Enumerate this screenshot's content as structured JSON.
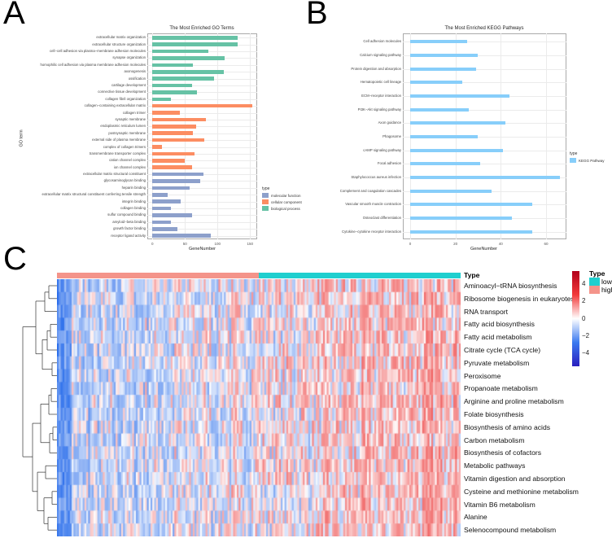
{
  "panels": {
    "a": "A",
    "b": "B",
    "c": "C"
  },
  "chart_data": [
    {
      "type": "bar",
      "orientation": "horizontal",
      "title": "The Most Enriched GO Terms",
      "xlabel": "GeneNumber",
      "ylabel": "GO term",
      "xlim": [
        0,
        160
      ],
      "xticks": [
        "0",
        "50",
        "100",
        "150"
      ],
      "xtick_values": [
        0,
        50,
        100,
        150
      ],
      "legend": {
        "title": "type",
        "position": "right",
        "entries": [
          {
            "label": "molecular function",
            "color": "#8DA0CB"
          },
          {
            "label": "cellular component",
            "color": "#FC8D62"
          },
          {
            "label": "biological process",
            "color": "#66C2A5"
          }
        ]
      },
      "categories": [
        "extracellular matrix organization",
        "extracellular structure organization",
        "cell−cell adhesion via plasma−membrane adhesion molecules",
        "synapse organization",
        "homophilic cell adhesion via plasma membrane adhesion molecules",
        "axonogenesis",
        "ossification",
        "cartilage development",
        "connective tissue development",
        "collagen fibril organization",
        "collagen−containing extracellular matrix",
        "collagen trimer",
        "synaptic membrane",
        "endoplasmic reticulum lumen",
        "postsynaptic membrane",
        "external side of plasma membrane",
        "complex of collagen trimers",
        "transmembrane transporter complex",
        "cation channel complex",
        "ion channel complex",
        "extracellular matrix structural constituent",
        "glycosaminoglycan binding",
        "heparin binding",
        "extracellular matrix structural constituent conferring tensile strength",
        "integrin binding",
        "collagen binding",
        "sulfur compound binding",
        "amyloid−beta binding",
        "growth factor binding",
        "receptor ligand activity"
      ],
      "values": [
        131,
        131,
        86,
        111,
        62,
        110,
        95,
        61,
        69,
        29,
        154,
        42,
        82,
        67,
        62,
        80,
        15,
        65,
        50,
        61,
        78,
        73,
        57,
        23,
        44,
        28,
        61,
        29,
        39,
        90
      ],
      "groups": [
        2,
        2,
        2,
        2,
        2,
        2,
        2,
        2,
        2,
        2,
        1,
        1,
        1,
        1,
        1,
        1,
        1,
        1,
        1,
        1,
        0,
        0,
        0,
        0,
        0,
        0,
        0,
        0,
        0,
        0
      ]
    },
    {
      "type": "bar",
      "orientation": "horizontal",
      "title": "The Most Enriched KEGG Pathways",
      "xlabel": "GeneNumber",
      "ylabel": "",
      "xlim": [
        0,
        69
      ],
      "xticks": [
        "0",
        "20",
        "40",
        "60"
      ],
      "xtick_values": [
        0,
        20,
        40,
        60
      ],
      "legend": {
        "title": "type",
        "position": "right",
        "entries": [
          {
            "label": "KEGG Pathway",
            "color": "#87CEFA"
          }
        ]
      },
      "categories": [
        "Cell adhesion molecules",
        "Calcium signaling pathway",
        "Protein digestion and absorption",
        "Hematopoietic cell lineage",
        "ECM−receptor interaction",
        "PI3K−Akt signaling pathway",
        "Axon guidance",
        "Phagosome",
        "cAMP signaling pathway",
        "Focal adhesion",
        "Staphylococcus aureus infection",
        "Complement and coagulation cascades",
        "Vascular smooth muscle contraction",
        "Osteoclast differentiation",
        "Cytokine−cytokine receptor interaction"
      ],
      "values": [
        25,
        30,
        29,
        23,
        44,
        26,
        42,
        30,
        41,
        31,
        66,
        36,
        54,
        45,
        54
      ]
    },
    {
      "type": "heatmap",
      "annotation": {
        "title": "Type",
        "levels": [
          {
            "label": "low",
            "color": "#1FCFCF"
          },
          {
            "label": "high",
            "color": "#F4948A"
          }
        ]
      },
      "colorbar": {
        "ticks": [
          "4",
          "2",
          "0",
          "−2",
          "−4"
        ],
        "tick_values": [
          4,
          2,
          0,
          -2,
          -4
        ],
        "range": [
          -5.5,
          5.5
        ]
      },
      "rows": [
        "Aminoacyl−tRNA biosynthesis",
        "Ribosome biogenesis in eukaryotes",
        "RNA transport",
        "Fatty acid biosynthesis",
        "Fatty acid metabolism",
        "Citrate cycle (TCA cycle)",
        "Pyruvate metabolism",
        "Peroxisome",
        "Propanoate metabolism",
        "Arginine and proline metabolism",
        "Folate biosynthesis",
        "Biosynthesis of amino acids",
        "Carbon metabolism",
        "Biosynthesis of cofactors",
        "Metabolic pathways",
        "Vitamin digestion and absorption",
        "Cysteine and methionine metabolism",
        "Vitamin B6 metabolism",
        "Alanine",
        "Selenocompound metabolism"
      ]
    }
  ]
}
